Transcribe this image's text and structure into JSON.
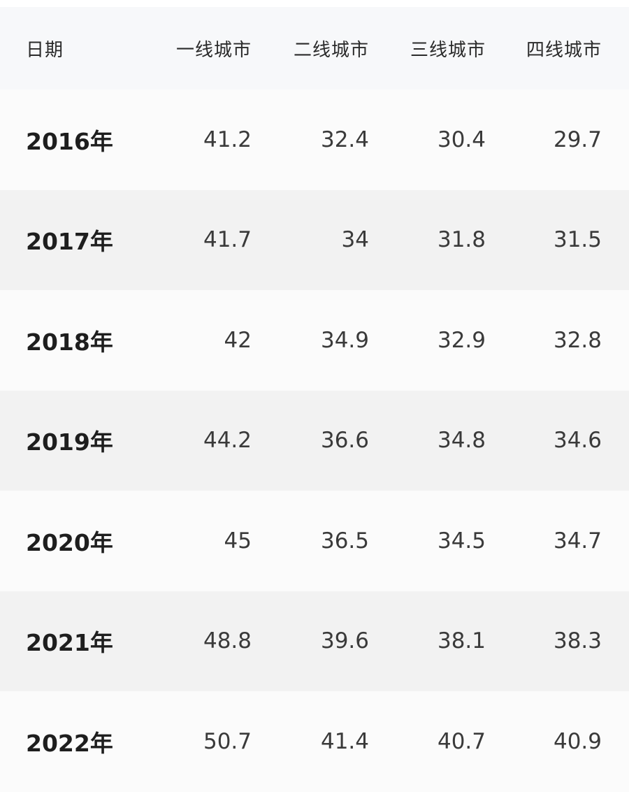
{
  "table": {
    "headers": [
      "日期",
      "一线城市",
      "二线城市",
      "三线城市",
      "四线城市"
    ],
    "rows": [
      {
        "date": "2016年",
        "values": [
          "41.2",
          "32.4",
          "30.4",
          "29.7"
        ]
      },
      {
        "date": "2017年",
        "values": [
          "41.7",
          "34",
          "31.8",
          "31.5"
        ]
      },
      {
        "date": "2018年",
        "values": [
          "42",
          "34.9",
          "32.9",
          "32.8"
        ]
      },
      {
        "date": "2019年",
        "values": [
          "44.2",
          "36.6",
          "34.8",
          "34.6"
        ]
      },
      {
        "date": "2020年",
        "values": [
          "45",
          "36.5",
          "34.5",
          "34.7"
        ]
      },
      {
        "date": "2021年",
        "values": [
          "48.8",
          "39.6",
          "38.1",
          "38.3"
        ]
      },
      {
        "date": "2022年",
        "values": [
          "50.7",
          "41.4",
          "40.7",
          "40.9"
        ]
      }
    ]
  },
  "colors": {
    "header_background": "#f7f8fa",
    "row_background_light": "#fbfbfb",
    "row_background_alt": "#f2f2f2",
    "text_primary": "#1e1e1e",
    "text_numbers": "#3a3a3a"
  }
}
